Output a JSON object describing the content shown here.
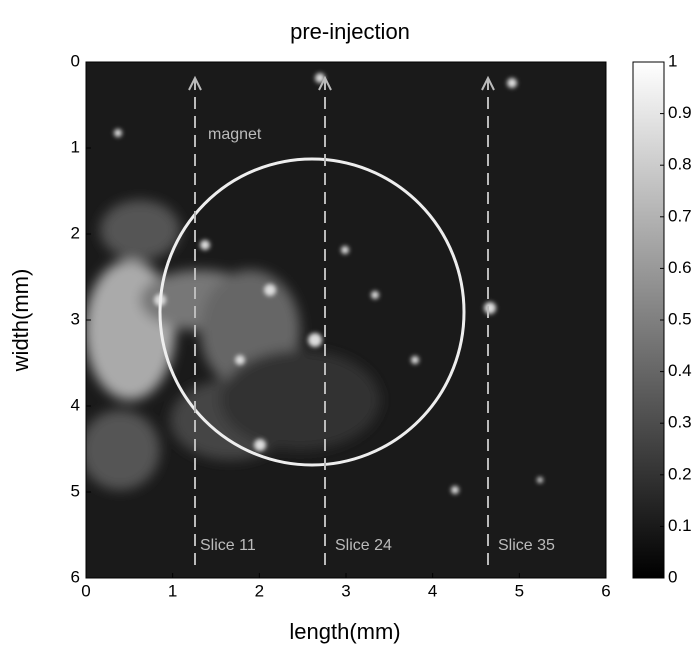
{
  "chart_data": {
    "type": "heatmap",
    "title": "pre-injection",
    "xlabel": "length(mm)",
    "ylabel": "width(mm)",
    "xlim": [
      0,
      6
    ],
    "xticks": [
      0,
      1,
      2,
      3,
      4,
      5,
      6
    ],
    "ylim": [
      6,
      0
    ],
    "yticks": [
      0,
      1,
      2,
      3,
      4,
      5,
      6
    ],
    "clim": [
      0,
      1
    ],
    "cticks": [
      0,
      0.1,
      0.2,
      0.3,
      0.4,
      0.5,
      0.6,
      0.7,
      0.8,
      0.9,
      1
    ],
    "colormap": [
      "#000000",
      "#ffffff"
    ],
    "annotations": [
      "magnet",
      "Slice 11",
      "Slice 24",
      "Slice 35"
    ]
  }
}
